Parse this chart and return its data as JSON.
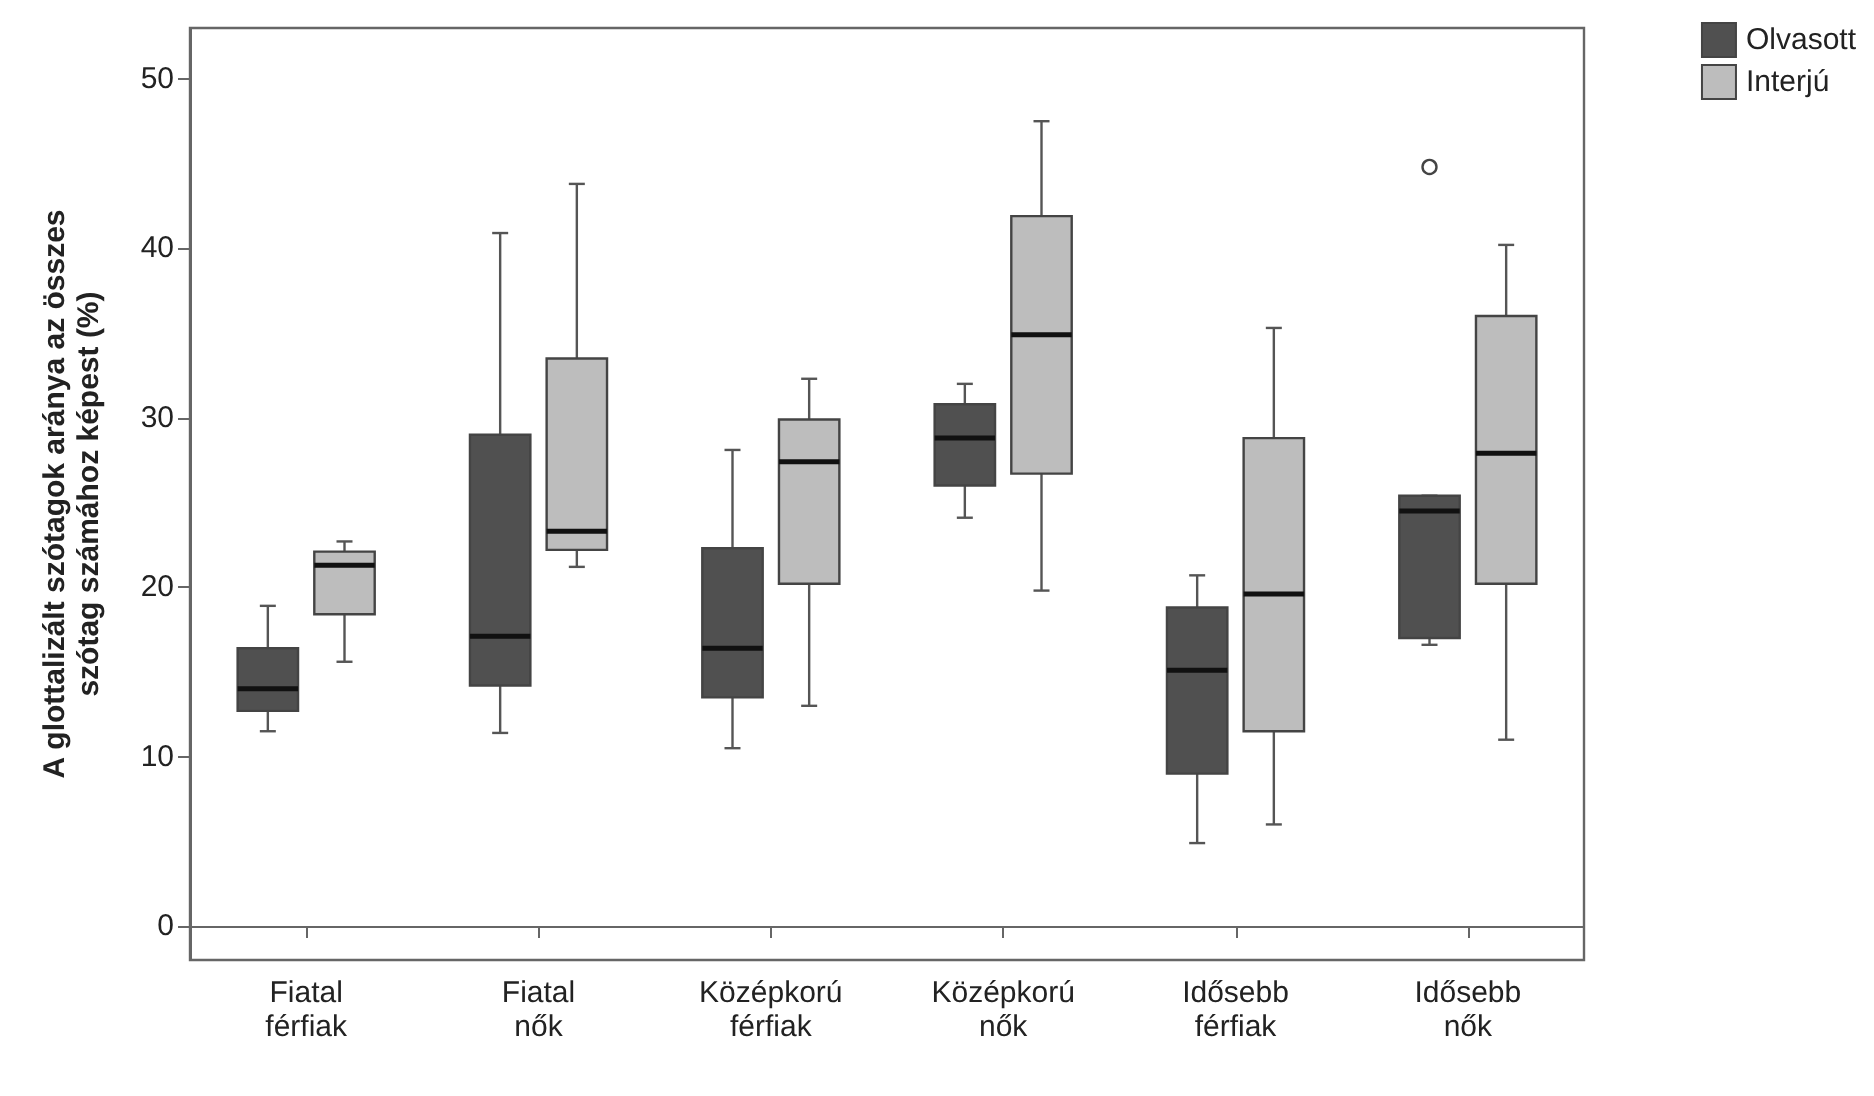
{
  "chart_data": {
    "type": "box",
    "ylabel": "A glottalizált szótagok aránya az összes szótag számához képest (%)",
    "categories": [
      "Fiatal férfiak",
      "Fiatal nők",
      "Középkorú férfiak",
      "Középkorú nők",
      "Idősebb férfiak",
      "Idősebb nők"
    ],
    "series": [
      {
        "name": "Olvasott",
        "color": "#505050",
        "boxes": [
          {
            "low": 11.5,
            "q1": 12.7,
            "median": 14,
            "q3": 16.4,
            "high": 18.9
          },
          {
            "low": 11.4,
            "q1": 14.2,
            "median": 17.1,
            "q3": 29,
            "high": 40.9
          },
          {
            "low": 10.5,
            "q1": 13.5,
            "median": 16.4,
            "q3": 22.3,
            "high": 28.1
          },
          {
            "low": 24.1,
            "q1": 26,
            "median": 28.8,
            "q3": 30.8,
            "high": 32
          },
          {
            "low": 4.9,
            "q1": 9,
            "median": 15.1,
            "q3": 18.8,
            "high": 20.7
          },
          {
            "low": 16.6,
            "q1": 17,
            "median": 24.5,
            "q3": 25.4,
            "high": 25.4,
            "outliers": [
              44.8
            ]
          }
        ]
      },
      {
        "name": "Interjú",
        "color": "#bdbdbd",
        "boxes": [
          {
            "low": 15.6,
            "q1": 18.4,
            "median": 21.3,
            "q3": 22.1,
            "high": 22.7
          },
          {
            "low": 21.2,
            "q1": 22.2,
            "median": 23.3,
            "q3": 33.5,
            "high": 43.8
          },
          {
            "low": 13,
            "q1": 20.2,
            "median": 27.4,
            "q3": 29.9,
            "high": 32.3
          },
          {
            "low": 19.8,
            "q1": 26.7,
            "median": 34.9,
            "q3": 41.9,
            "high": 47.5
          },
          {
            "low": 6,
            "q1": 11.5,
            "median": 19.6,
            "q3": 28.8,
            "high": 35.3
          },
          {
            "low": 11,
            "q1": 20.2,
            "median": 27.9,
            "q3": 36,
            "high": 40.2
          }
        ]
      }
    ],
    "ylim": [
      -2,
      53
    ],
    "yticks": [
      0,
      10,
      20,
      30,
      40,
      50
    ],
    "legend": "top right"
  }
}
